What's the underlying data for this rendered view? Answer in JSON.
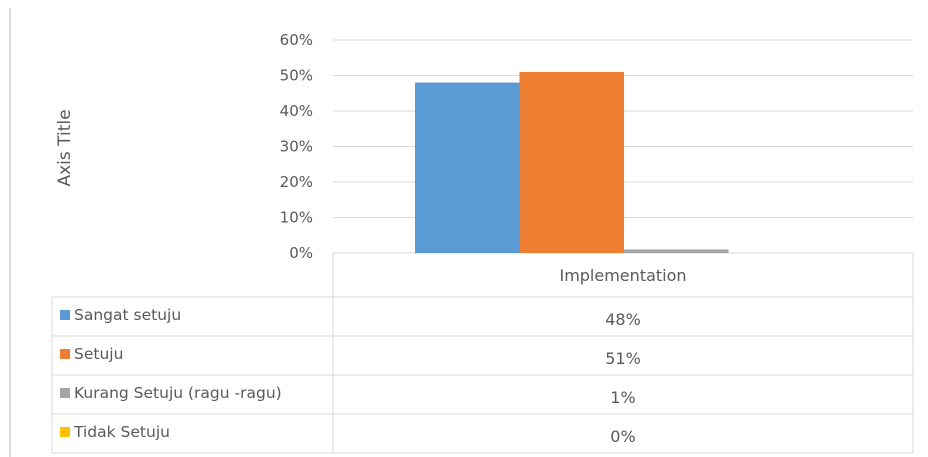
{
  "chart_data": {
    "type": "bar",
    "categories": [
      "Implementation"
    ],
    "series": [
      {
        "name": "Sangat setuju",
        "values": [
          48
        ],
        "label": "48%",
        "color": "#5b9bd5"
      },
      {
        "name": "Setuju",
        "values": [
          51
        ],
        "label": "51%",
        "color": "#ed7d31"
      },
      {
        "name": "Kurang Setuju (ragu -ragu)",
        "values": [
          1
        ],
        "label": "1%",
        "color": "#a5a5a5"
      },
      {
        "name": "Tidak Setuju",
        "values": [
          0
        ],
        "label": "0%",
        "color": "#ffc000"
      }
    ],
    "title": "",
    "xlabel": "",
    "ylabel": "Axis Title",
    "ylim": [
      0,
      60
    ],
    "yticks": [
      "0%",
      "10%",
      "20%",
      "30%",
      "40%",
      "50%",
      "60%"
    ],
    "unit": "%",
    "grid": true,
    "legend": "data-table"
  }
}
